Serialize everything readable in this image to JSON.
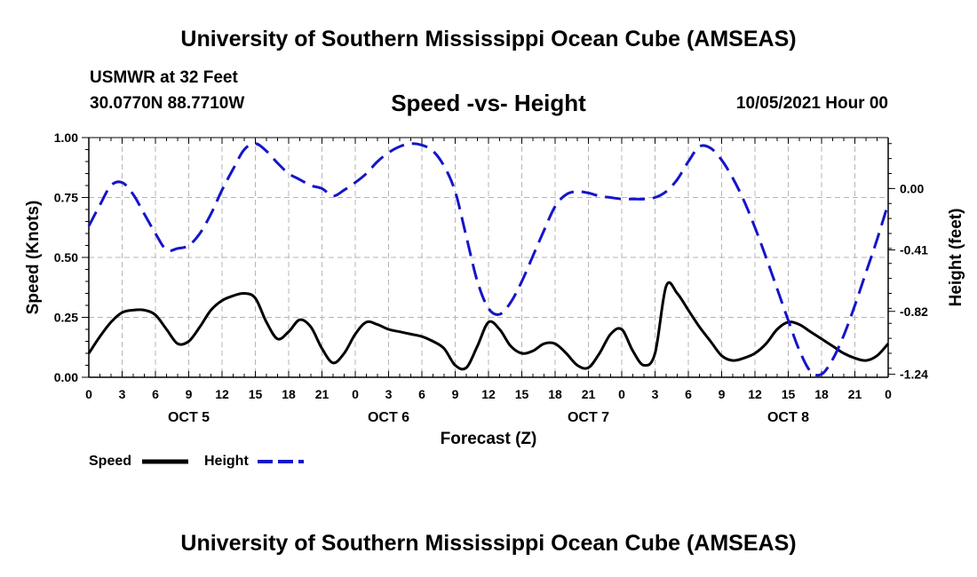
{
  "header": {
    "top_title": "University of Southern Mississippi Ocean Cube (AMSEAS)",
    "station": "USMWR at 32 Feet",
    "coords": "30.0770N  88.7710W",
    "date_label": "10/05/2021 Hour 00",
    "bottom_title": "University of Southern Mississippi Ocean Cube (AMSEAS)"
  },
  "colors": {
    "speed": "#000000",
    "height": "#1515c8",
    "grid": "#b4b4b4"
  },
  "chart_data": {
    "type": "line",
    "title": "Speed -vs- Height",
    "xlabel": "Forecast (Z)",
    "ylabel": "Speed (Knots)",
    "y2label": "Height (feet)",
    "xlim": [
      0,
      72
    ],
    "ylim": [
      0,
      1
    ],
    "y2lim": [
      -1.26,
      0.34
    ],
    "x_ticks": [
      0,
      3,
      6,
      9,
      12,
      15,
      18,
      21,
      24,
      27,
      30,
      33,
      36,
      39,
      42,
      45,
      48,
      51,
      54,
      57,
      60,
      63,
      66,
      69,
      72
    ],
    "x_tick_labels": [
      "0",
      "3",
      "6",
      "9",
      "12",
      "15",
      "18",
      "21",
      "0",
      "3",
      "6",
      "9",
      "12",
      "15",
      "18",
      "21",
      "0",
      "3",
      "6",
      "9",
      "12",
      "15",
      "18",
      "21",
      "0"
    ],
    "day_labels": [
      {
        "label": "OCT 5",
        "x": 9
      },
      {
        "label": "OCT 6",
        "x": 27
      },
      {
        "label": "OCT 7",
        "x": 45
      },
      {
        "label": "OCT 8",
        "x": 63
      }
    ],
    "y_ticks": [
      0,
      0.25,
      0.5,
      0.75,
      1.0
    ],
    "y_tick_labels": [
      "0.00",
      "0.25",
      "0.50",
      "0.75",
      "1.00"
    ],
    "y2_ticks": [
      0.0,
      -0.41,
      -0.82,
      -1.24
    ],
    "y2_tick_labels": [
      "0.00",
      "-0.41",
      "-0.82",
      "-1.24"
    ],
    "series": [
      {
        "name": "Speed",
        "axis": "left",
        "x": [
          0,
          1,
          2,
          3,
          4,
          5,
          6,
          7,
          8,
          9,
          10,
          11,
          12,
          13,
          14,
          15,
          16,
          17,
          18,
          19,
          20,
          21,
          22,
          23,
          24,
          25,
          26,
          27,
          28,
          29,
          30,
          31,
          32,
          33,
          34,
          35,
          36,
          37,
          38,
          39,
          40,
          41,
          42,
          43,
          44,
          45,
          46,
          47,
          48,
          49,
          50,
          51,
          52,
          53,
          54,
          55,
          56,
          57,
          58,
          59,
          60,
          61,
          62,
          63,
          64,
          65,
          66,
          67,
          68,
          69,
          70,
          71,
          72
        ],
        "values": [
          0.1,
          0.17,
          0.23,
          0.27,
          0.28,
          0.28,
          0.26,
          0.2,
          0.14,
          0.15,
          0.21,
          0.28,
          0.32,
          0.34,
          0.35,
          0.33,
          0.23,
          0.16,
          0.19,
          0.24,
          0.21,
          0.12,
          0.06,
          0.1,
          0.18,
          0.23,
          0.22,
          0.2,
          0.19,
          0.18,
          0.17,
          0.15,
          0.12,
          0.05,
          0.04,
          0.13,
          0.23,
          0.2,
          0.13,
          0.1,
          0.11,
          0.14,
          0.14,
          0.1,
          0.05,
          0.04,
          0.1,
          0.18,
          0.2,
          0.11,
          0.05,
          0.1,
          0.38,
          0.35,
          0.28,
          0.21,
          0.15,
          0.09,
          0.07,
          0.08,
          0.1,
          0.14,
          0.2,
          0.23,
          0.22,
          0.19,
          0.16,
          0.13,
          0.1,
          0.08,
          0.07,
          0.09,
          0.14
        ]
      },
      {
        "name": "Height",
        "axis": "right",
        "x": [
          0,
          1,
          2,
          3,
          4,
          5,
          6,
          7,
          8,
          9,
          10,
          11,
          12,
          13,
          14,
          15,
          16,
          17,
          18,
          19,
          20,
          21,
          22,
          23,
          24,
          25,
          26,
          27,
          28,
          29,
          30,
          31,
          32,
          33,
          34,
          35,
          36,
          37,
          38,
          39,
          40,
          41,
          42,
          43,
          44,
          45,
          46,
          47,
          48,
          49,
          50,
          51,
          52,
          53,
          54,
          55,
          56,
          57,
          58,
          59,
          60,
          61,
          62,
          63,
          64,
          65,
          66,
          67,
          68,
          69,
          70,
          71,
          72
        ],
        "values": [
          -0.25,
          -0.11,
          0.02,
          0.04,
          -0.04,
          -0.17,
          -0.3,
          -0.41,
          -0.4,
          -0.38,
          -0.3,
          -0.17,
          -0.01,
          0.13,
          0.26,
          0.3,
          0.25,
          0.17,
          0.1,
          0.06,
          0.02,
          0.0,
          -0.05,
          -0.01,
          0.04,
          0.1,
          0.18,
          0.24,
          0.28,
          0.3,
          0.29,
          0.25,
          0.15,
          -0.02,
          -0.32,
          -0.62,
          -0.8,
          -0.84,
          -0.76,
          -0.62,
          -0.45,
          -0.28,
          -0.12,
          -0.04,
          -0.02,
          -0.03,
          -0.05,
          -0.06,
          -0.07,
          -0.07,
          -0.07,
          -0.06,
          -0.02,
          0.06,
          0.18,
          0.28,
          0.27,
          0.19,
          0.07,
          -0.08,
          -0.26,
          -0.46,
          -0.67,
          -0.88,
          -1.08,
          -1.22,
          -1.24,
          -1.14,
          -0.98,
          -0.78,
          -0.56,
          -0.34,
          -0.1
        ]
      }
    ],
    "legend": [
      {
        "label": "Speed",
        "series": "Speed"
      },
      {
        "label": "Height",
        "series": "Height"
      }
    ]
  }
}
